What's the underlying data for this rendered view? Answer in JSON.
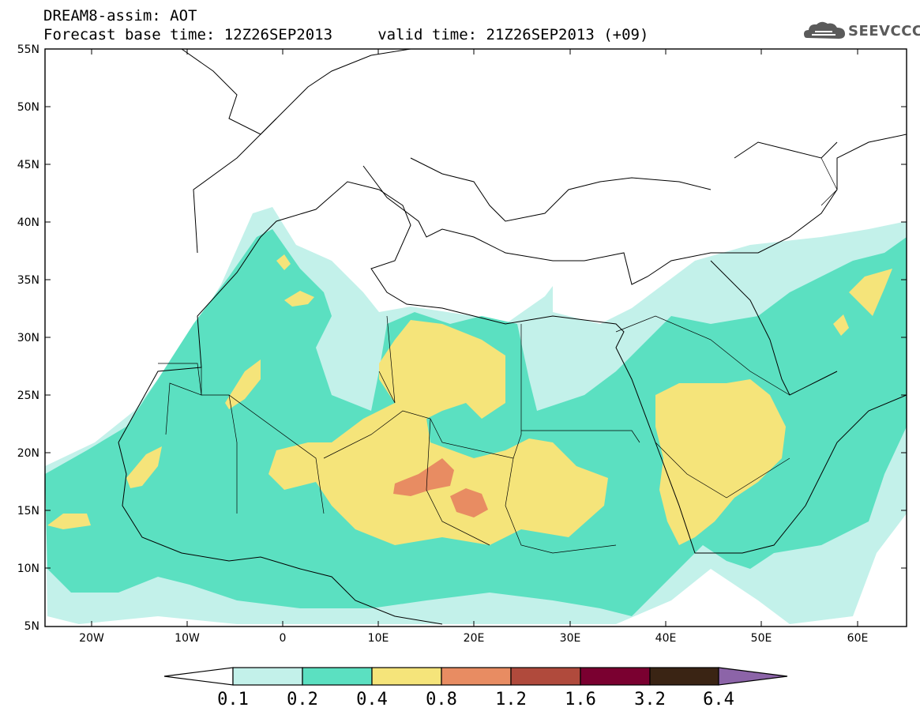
{
  "header": {
    "line1": "DREAM8-assim: AOT",
    "line2": "Forecast base time: 12Z26SEP2013     valid time: 21Z26SEP2013 (+09)"
  },
  "logo": {
    "text": "SEEVCCC",
    "icon": "cloud-logo-icon"
  },
  "map": {
    "lat_labels": [
      "55N",
      "50N",
      "45N",
      "40N",
      "35N",
      "30N",
      "25N",
      "20N",
      "15N",
      "10N",
      "5N"
    ],
    "lon_labels": [
      "20W",
      "10W",
      "0",
      "10E",
      "20E",
      "30E",
      "40E",
      "50E",
      "60E"
    ]
  },
  "colorbar": {
    "labels": [
      "0.1",
      "0.2",
      "0.4",
      "0.8",
      "1.2",
      "1.6",
      "3.2",
      "6.4"
    ],
    "colors": [
      "#ffffff",
      "#c3f1ea",
      "#5be0c1",
      "#f5e47a",
      "#e88c62",
      "#b04a3c",
      "#7a0030",
      "#3a2414",
      "#8c64a8"
    ]
  }
}
